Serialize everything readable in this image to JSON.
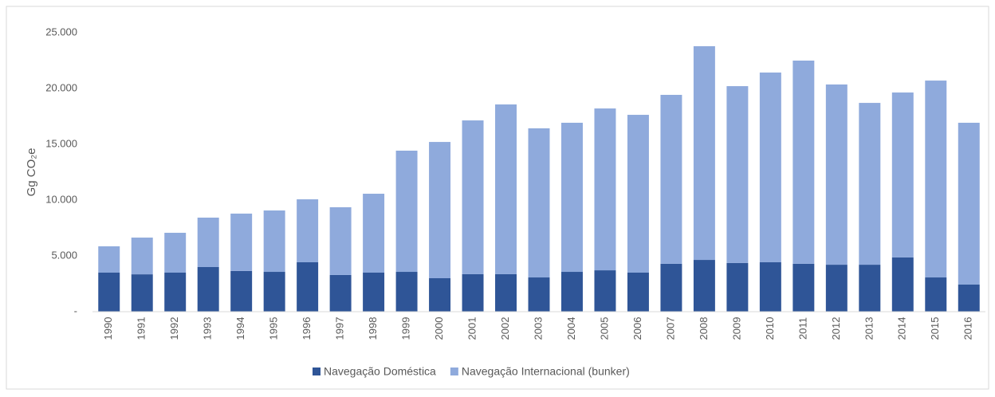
{
  "chart_data": {
    "type": "stacked_bar",
    "ylabel": "Gg CO₂e",
    "categories": [
      "1990",
      "1991",
      "1992",
      "1993",
      "1994",
      "1995",
      "1996",
      "1997",
      "1998",
      "1999",
      "2000",
      "2001",
      "2002",
      "2003",
      "2004",
      "2005",
      "2006",
      "2007",
      "2008",
      "2009",
      "2010",
      "2011",
      "2012",
      "2013",
      "2014",
      "2015",
      "2016"
    ],
    "series": [
      {
        "name": "Navegação Doméstica",
        "color": "#2f5597",
        "values": [
          3500,
          3350,
          3500,
          4000,
          3650,
          3570,
          4430,
          3290,
          3500,
          3570,
          3000,
          3360,
          3360,
          3070,
          3570,
          3710,
          3500,
          4290,
          4640,
          4360,
          4430,
          4290,
          4210,
          4210,
          4860,
          3070,
          2430
        ]
      },
      {
        "name": "Navegação Internacional (bunker)",
        "color": "#8faadc",
        "values": [
          2360,
          3290,
          3570,
          4430,
          5140,
          5500,
          5640,
          6070,
          7070,
          10860,
          12210,
          13780,
          15210,
          13360,
          13360,
          14500,
          14140,
          15140,
          19150,
          15850,
          17000,
          18210,
          16150,
          14500,
          14780,
          17640,
          14500
        ]
      }
    ],
    "ylim": [
      0,
      25000
    ],
    "yticks": [
      {
        "value": 0,
        "label": "-"
      },
      {
        "value": 5000,
        "label": "5.000"
      },
      {
        "value": 10000,
        "label": "10.000"
      },
      {
        "value": 15000,
        "label": "15.000"
      },
      {
        "value": 20000,
        "label": "20.000"
      },
      {
        "value": 25000,
        "label": "25.000"
      }
    ],
    "legend": "bottom"
  }
}
